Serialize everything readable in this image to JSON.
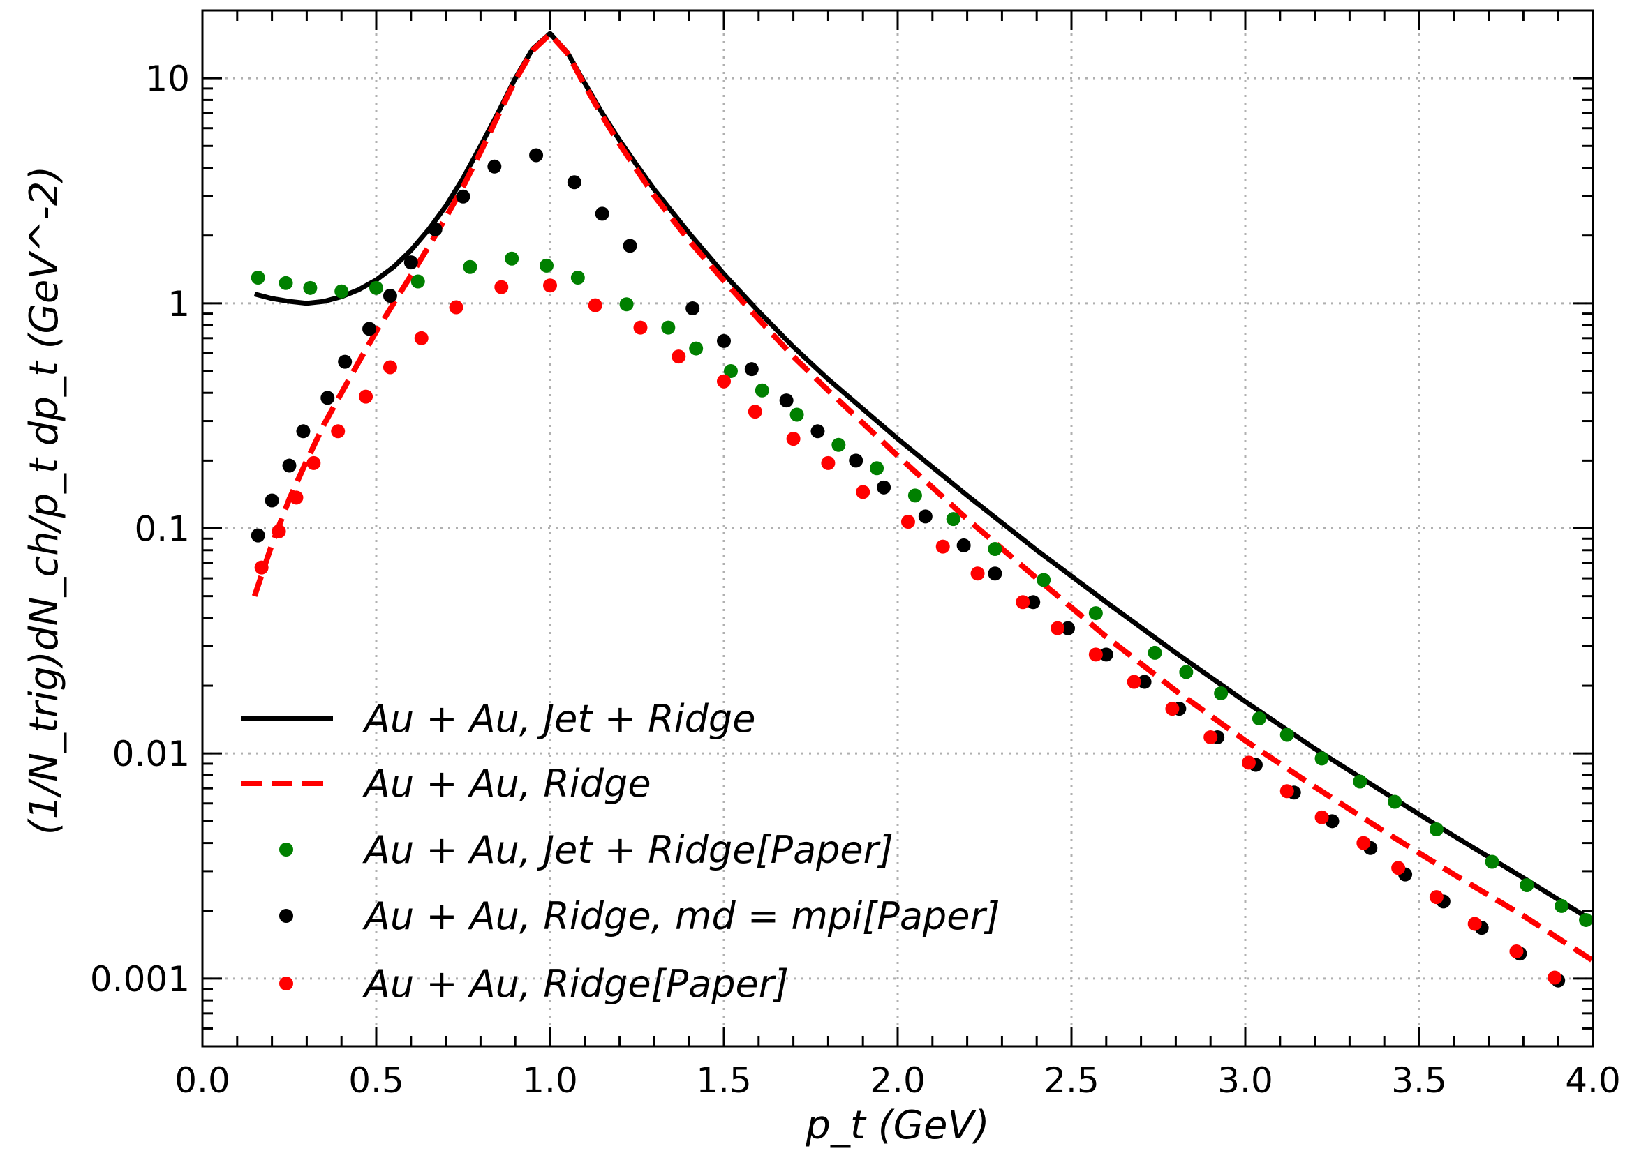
{
  "chart_data": {
    "type": "line",
    "xlabel": "p_t   (GeV)",
    "ylabel": "(1/N_trig)dN_ch/p_t dp_t   (GeV^-2)",
    "y_scale": "log",
    "xlim": [
      0.0,
      4.0
    ],
    "ylim": [
      0.0005,
      20
    ],
    "grid": true,
    "legend_position": "lower-left",
    "x_ticks": [
      "0.0",
      "0.5",
      "1.0",
      "1.5",
      "2.0",
      "2.5",
      "3.0",
      "3.5",
      "4.0"
    ],
    "y_ticks": [
      "0.001",
      "0.01",
      "0.1",
      "1",
      "10"
    ],
    "series": [
      {
        "name": "Au + Au, Jet + Ridge",
        "style": "solid",
        "color": "#000000",
        "x": [
          0.15,
          0.2,
          0.25,
          0.3,
          0.35,
          0.4,
          0.45,
          0.5,
          0.55,
          0.6,
          0.65,
          0.7,
          0.75,
          0.8,
          0.85,
          0.9,
          0.95,
          1.0,
          1.05,
          1.1,
          1.15,
          1.2,
          1.25,
          1.3,
          1.4,
          1.5,
          1.6,
          1.7,
          1.8,
          2.0,
          2.2,
          2.4,
          2.6,
          2.8,
          3.0,
          3.2,
          3.4,
          3.6,
          3.8,
          4.0
        ],
        "y": [
          1.1,
          1.05,
          1.02,
          1.0,
          1.02,
          1.07,
          1.15,
          1.27,
          1.45,
          1.72,
          2.12,
          2.7,
          3.6,
          5.0,
          7.0,
          10.0,
          13.5,
          15.8,
          13.0,
          9.5,
          7.0,
          5.3,
          4.1,
          3.2,
          2.05,
          1.35,
          0.92,
          0.64,
          0.46,
          0.25,
          0.14,
          0.08,
          0.047,
          0.028,
          0.017,
          0.0105,
          0.0067,
          0.0043,
          0.0028,
          0.0018
        ]
      },
      {
        "name": "Au + Au, Ridge",
        "style": "dashed",
        "color": "#ff0000",
        "x": [
          0.15,
          0.2,
          0.25,
          0.3,
          0.35,
          0.4,
          0.45,
          0.5,
          0.55,
          0.6,
          0.65,
          0.7,
          0.75,
          0.8,
          0.85,
          0.9,
          0.95,
          1.0,
          1.05,
          1.1,
          1.15,
          1.2,
          1.25,
          1.3,
          1.4,
          1.5,
          1.6,
          1.7,
          1.8,
          2.0,
          2.2,
          2.4,
          2.6,
          2.8,
          3.0,
          3.2,
          3.4,
          3.6,
          3.8,
          4.0
        ],
        "y": [
          0.05,
          0.085,
          0.135,
          0.2,
          0.29,
          0.4,
          0.55,
          0.75,
          1.0,
          1.33,
          1.78,
          2.4,
          3.3,
          4.7,
          6.8,
          9.8,
          13.3,
          15.7,
          12.9,
          9.3,
          6.8,
          5.1,
          3.9,
          3.0,
          1.9,
          1.26,
          0.85,
          0.58,
          0.41,
          0.21,
          0.11,
          0.06,
          0.033,
          0.019,
          0.0114,
          0.0071,
          0.0045,
          0.0029,
          0.0019,
          0.0012
        ]
      },
      {
        "name": "Au + Au, Jet + Ridge[Paper]",
        "style": "scatter",
        "color": "#008000",
        "x": [
          0.16,
          0.24,
          0.31,
          0.4,
          0.5,
          0.62,
          0.77,
          0.89,
          0.99,
          1.08,
          1.22,
          1.34,
          1.42,
          1.52,
          1.61,
          1.71,
          1.83,
          1.94,
          2.05,
          2.16,
          2.28,
          2.42,
          2.57,
          2.74,
          2.83,
          2.93,
          3.04,
          3.12,
          3.22,
          3.33,
          3.43,
          3.55,
          3.71,
          3.81,
          3.91,
          3.98
        ],
        "y": [
          1.3,
          1.23,
          1.17,
          1.13,
          1.17,
          1.25,
          1.45,
          1.58,
          1.47,
          1.3,
          0.99,
          0.78,
          0.63,
          0.5,
          0.41,
          0.32,
          0.235,
          0.185,
          0.14,
          0.11,
          0.081,
          0.059,
          0.042,
          0.028,
          0.023,
          0.0185,
          0.0143,
          0.0121,
          0.0095,
          0.0075,
          0.0061,
          0.0046,
          0.0033,
          0.0026,
          0.0021,
          0.00182
        ]
      },
      {
        "name": "Au + Au, Ridge, md = mpi[Paper]",
        "style": "scatter",
        "color": "#000000",
        "x": [
          0.16,
          0.2,
          0.25,
          0.29,
          0.36,
          0.41,
          0.48,
          0.54,
          0.6,
          0.67,
          0.75,
          0.84,
          0.96,
          1.07,
          1.15,
          1.23,
          1.41,
          1.5,
          1.58,
          1.68,
          1.77,
          1.88,
          1.96,
          2.08,
          2.19,
          2.28,
          2.39,
          2.49,
          2.6,
          2.71,
          2.81,
          2.92,
          3.03,
          3.14,
          3.25,
          3.36,
          3.46,
          3.57,
          3.68,
          3.79,
          3.9
        ],
        "y": [
          0.093,
          0.133,
          0.19,
          0.27,
          0.38,
          0.55,
          0.77,
          1.08,
          1.52,
          2.13,
          2.98,
          4.05,
          4.55,
          3.45,
          2.5,
          1.8,
          0.95,
          0.68,
          0.51,
          0.37,
          0.27,
          0.2,
          0.152,
          0.113,
          0.084,
          0.063,
          0.047,
          0.036,
          0.0275,
          0.0208,
          0.0158,
          0.0118,
          0.0089,
          0.0067,
          0.005,
          0.0038,
          0.0029,
          0.0022,
          0.00168,
          0.00129,
          0.00098
        ]
      },
      {
        "name": "Au + Au, Ridge[Paper]",
        "style": "scatter",
        "color": "#ff0000",
        "x": [
          0.17,
          0.22,
          0.27,
          0.32,
          0.39,
          0.47,
          0.54,
          0.63,
          0.73,
          0.86,
          1.0,
          1.13,
          1.26,
          1.37,
          1.5,
          1.59,
          1.7,
          1.8,
          1.9,
          2.03,
          2.13,
          2.23,
          2.36,
          2.46,
          2.57,
          2.68,
          2.79,
          2.9,
          3.01,
          3.12,
          3.22,
          3.34,
          3.44,
          3.55,
          3.66,
          3.78,
          3.89
        ],
        "y": [
          0.067,
          0.097,
          0.137,
          0.195,
          0.27,
          0.385,
          0.52,
          0.7,
          0.96,
          1.18,
          1.2,
          0.98,
          0.78,
          0.58,
          0.45,
          0.33,
          0.25,
          0.195,
          0.145,
          0.107,
          0.083,
          0.063,
          0.047,
          0.036,
          0.0275,
          0.0208,
          0.0158,
          0.0118,
          0.0091,
          0.0068,
          0.0052,
          0.004,
          0.0031,
          0.0023,
          0.00175,
          0.00132,
          0.00101
        ]
      }
    ]
  }
}
